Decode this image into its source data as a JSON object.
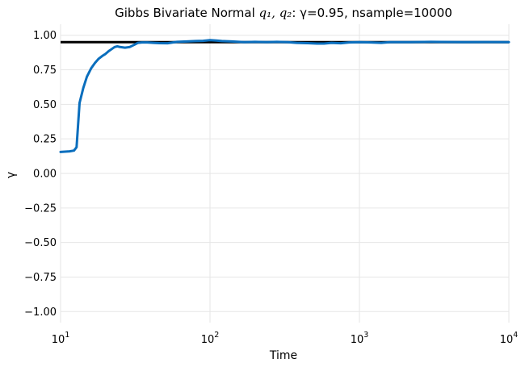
{
  "chart_data": {
    "type": "line",
    "title": "Gibbs Bivariate Normal",
    "title_math": "q₁, q₂",
    "title_suffix": ": γ=0.95, nsample=10000",
    "xlabel": "Time",
    "ylabel": "γ",
    "xscale": "log",
    "xlim": [
      10,
      10000
    ],
    "ylim": [
      -1.08,
      1.08
    ],
    "grid": true,
    "legend": "none",
    "x_ticks": [
      10,
      100,
      1000,
      10000
    ],
    "x_tick_labels": [
      {
        "base": "10",
        "exp": "1"
      },
      {
        "base": "10",
        "exp": "2"
      },
      {
        "base": "10",
        "exp": "3"
      },
      {
        "base": "10",
        "exp": "4"
      }
    ],
    "y_ticks": [
      1.0,
      0.75,
      0.5,
      0.25,
      0.0,
      -0.25,
      -0.5,
      -0.75,
      -1.0
    ],
    "y_tick_labels": [
      "1.00",
      "0.75",
      "0.50",
      "0.25",
      "0.00",
      "−0.25",
      "−0.50",
      "−0.75",
      "−1.00"
    ],
    "reference_line": {
      "y": 0.95,
      "color": "#000000"
    },
    "series": [
      {
        "color": "#0a6ebd",
        "x": [
          10,
          11.5,
          12.3,
          12.8,
          13.4,
          14.2,
          15,
          16,
          17,
          18,
          19,
          20,
          21,
          22,
          23,
          24,
          25,
          27,
          29,
          31,
          33,
          35,
          38,
          42,
          46,
          52,
          60,
          70,
          80,
          90,
          100,
          110,
          120,
          140,
          170,
          200,
          240,
          280,
          330,
          380,
          450,
          520,
          580,
          650,
          750,
          850,
          1000,
          1200,
          1400,
          1600,
          2000,
          3000,
          5000,
          7000,
          10000
        ],
        "values": [
          0.155,
          0.16,
          0.165,
          0.19,
          0.51,
          0.62,
          0.7,
          0.76,
          0.8,
          0.83,
          0.85,
          0.865,
          0.885,
          0.9,
          0.915,
          0.92,
          0.915,
          0.91,
          0.915,
          0.93,
          0.945,
          0.948,
          0.948,
          0.945,
          0.943,
          0.942,
          0.952,
          0.955,
          0.958,
          0.96,
          0.965,
          0.962,
          0.958,
          0.955,
          0.95,
          0.952,
          0.95,
          0.952,
          0.95,
          0.945,
          0.943,
          0.94,
          0.94,
          0.945,
          0.942,
          0.948,
          0.95,
          0.948,
          0.945,
          0.95,
          0.95,
          0.952,
          0.95,
          0.951,
          0.95
        ]
      }
    ]
  }
}
